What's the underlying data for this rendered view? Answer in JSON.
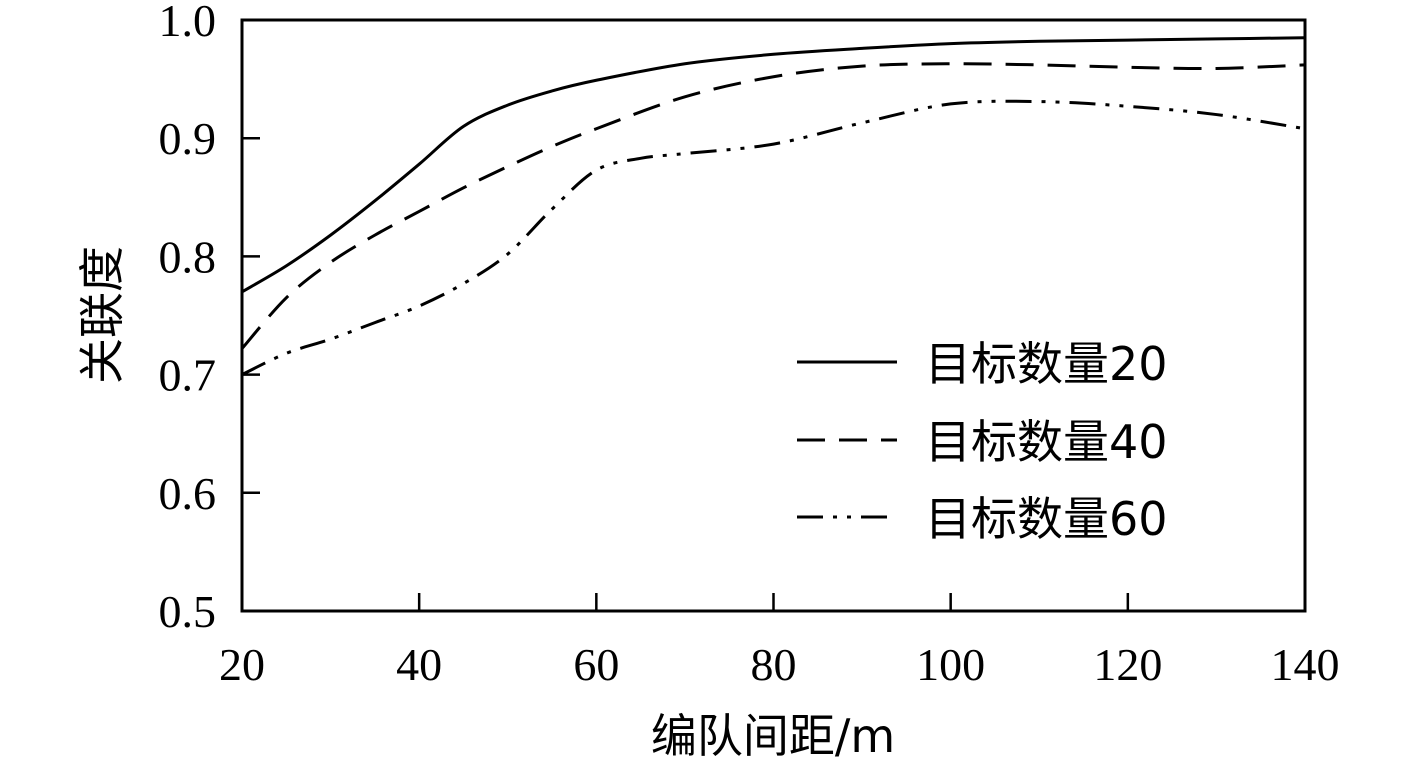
{
  "chart_data": {
    "type": "line",
    "title": "",
    "xlabel": "编队间距/m",
    "ylabel": "关联度",
    "xlim": [
      20,
      140
    ],
    "ylim": [
      0.5,
      1.0
    ],
    "x_ticks": [
      20,
      40,
      60,
      80,
      100,
      120,
      140
    ],
    "y_ticks": [
      0.5,
      0.6,
      0.7,
      0.8,
      0.9,
      1.0
    ],
    "x_tick_labels": [
      "20",
      "40",
      "60",
      "80",
      "100",
      "120",
      "140"
    ],
    "y_tick_labels": [
      "0.5",
      "0.6",
      "0.7",
      "0.8",
      "0.9",
      "1.0"
    ],
    "grid": false,
    "legend_position": "bottom-right",
    "series": [
      {
        "name": "目标数量20",
        "style": "solid",
        "color": "#000000",
        "x": [
          20,
          25,
          30,
          35,
          40,
          45,
          50,
          55,
          60,
          70,
          80,
          90,
          100,
          110,
          120,
          130,
          140
        ],
        "y": [
          0.77,
          0.792,
          0.818,
          0.847,
          0.878,
          0.91,
          0.928,
          0.94,
          0.949,
          0.963,
          0.971,
          0.976,
          0.98,
          0.982,
          0.983,
          0.984,
          0.985
        ]
      },
      {
        "name": "目标数量40",
        "style": "dashed",
        "color": "#000000",
        "x": [
          20,
          25,
          30,
          35,
          40,
          45,
          50,
          55,
          60,
          70,
          80,
          90,
          100,
          110,
          120,
          130,
          140
        ],
        "y": [
          0.722,
          0.765,
          0.795,
          0.818,
          0.838,
          0.858,
          0.876,
          0.893,
          0.908,
          0.935,
          0.952,
          0.961,
          0.963,
          0.962,
          0.96,
          0.959,
          0.962
        ]
      },
      {
        "name": "目标数量60",
        "style": "dash-dot-dot",
        "color": "#000000",
        "x": [
          20,
          25,
          30,
          35,
          40,
          45,
          50,
          55,
          60,
          65,
          70,
          80,
          90,
          100,
          110,
          120,
          130,
          140
        ],
        "y": [
          0.7,
          0.718,
          0.73,
          0.744,
          0.758,
          0.777,
          0.802,
          0.84,
          0.873,
          0.883,
          0.887,
          0.895,
          0.913,
          0.929,
          0.931,
          0.927,
          0.92,
          0.908
        ]
      }
    ]
  }
}
